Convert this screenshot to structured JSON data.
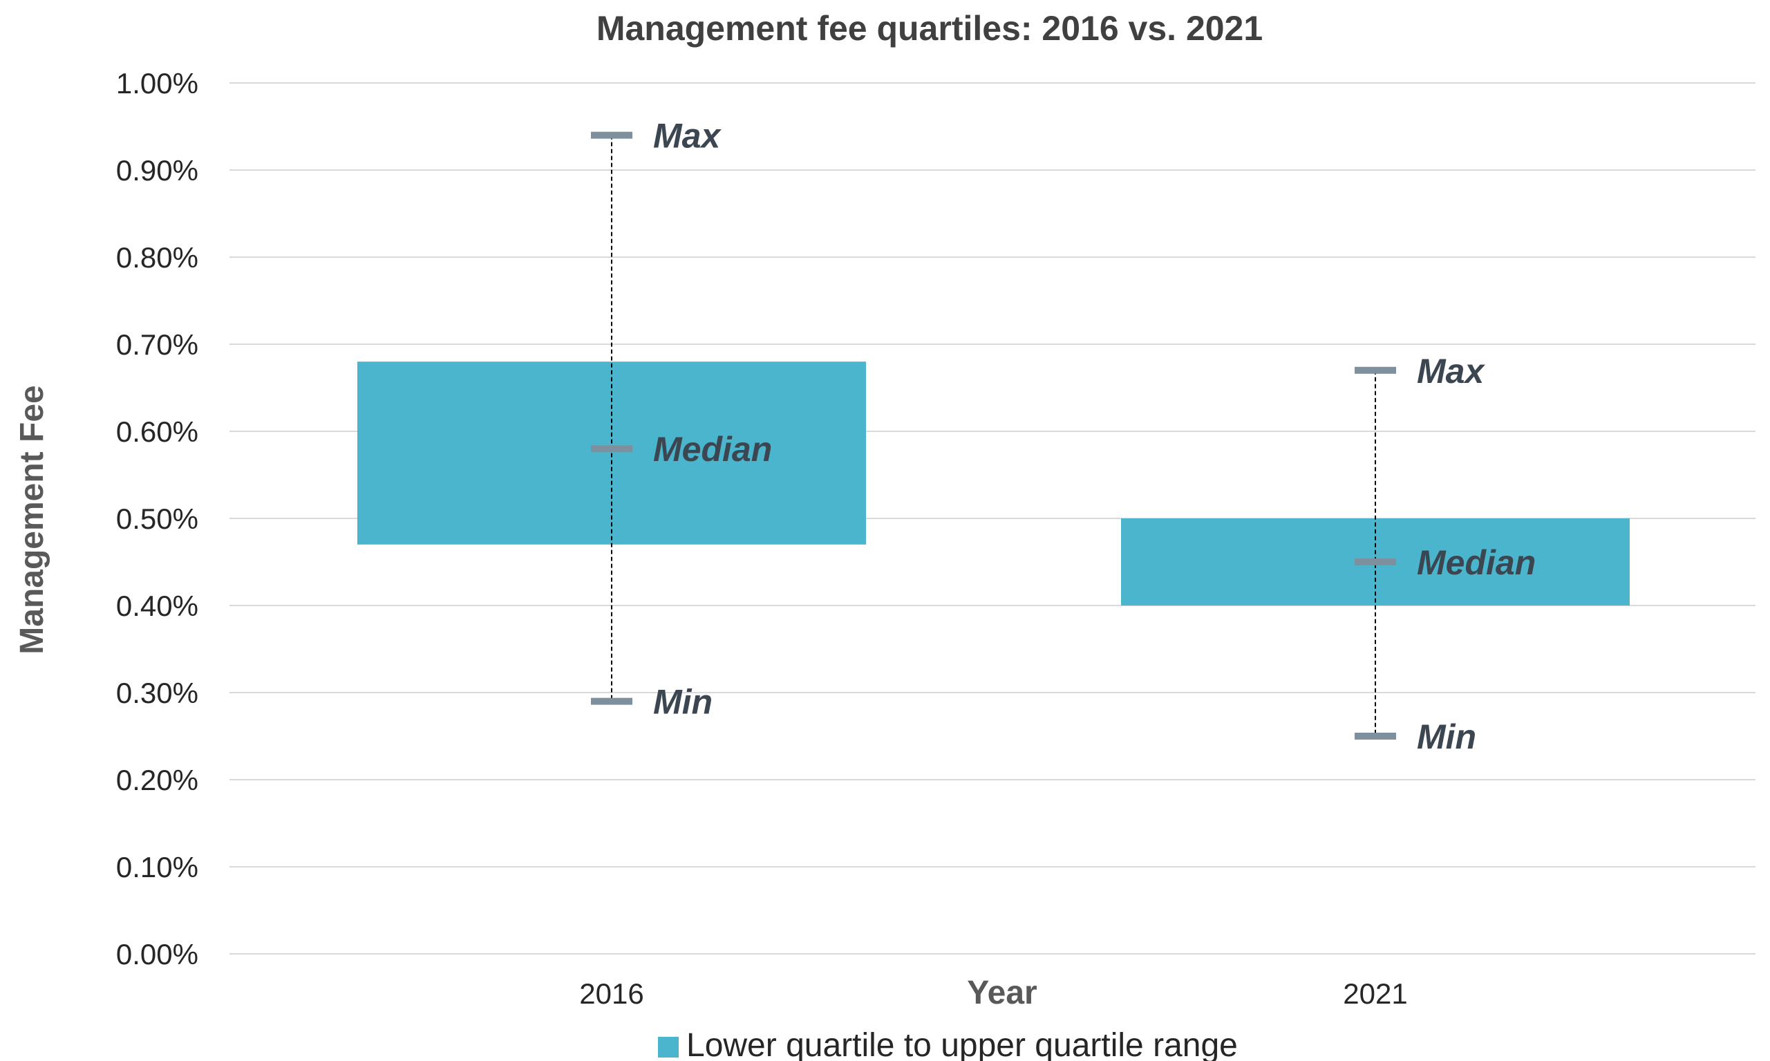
{
  "chart_data": {
    "type": "bar",
    "title": "Management fee quartiles: 2016 vs. 2021",
    "xlabel": "Year",
    "ylabel": "Management Fee",
    "categories": [
      "2016",
      "2021"
    ],
    "ylim": [
      0,
      0.01
    ],
    "yticks": [
      "0.00%",
      "0.10%",
      "0.20%",
      "0.30%",
      "0.40%",
      "0.50%",
      "0.60%",
      "0.70%",
      "0.80%",
      "0.90%",
      "1.00%"
    ],
    "grid": true,
    "legend_position": "bottom",
    "series": [
      {
        "name": "Lower quartile to upper quartile range",
        "lower_quartile": [
          0.0047,
          0.004
        ],
        "upper_quartile": [
          0.0068,
          0.005
        ]
      }
    ],
    "min": [
      0.0029,
      0.0025
    ],
    "median": [
      0.0058,
      0.0045
    ],
    "max": [
      0.0094,
      0.0067
    ],
    "marker_labels": {
      "max": "Max",
      "median": "Median",
      "min": "Min"
    },
    "colors": {
      "box": "#4ab5cc",
      "marker": "#7e909e",
      "grid": "#d9d9d9",
      "whisker": "#000000"
    }
  }
}
